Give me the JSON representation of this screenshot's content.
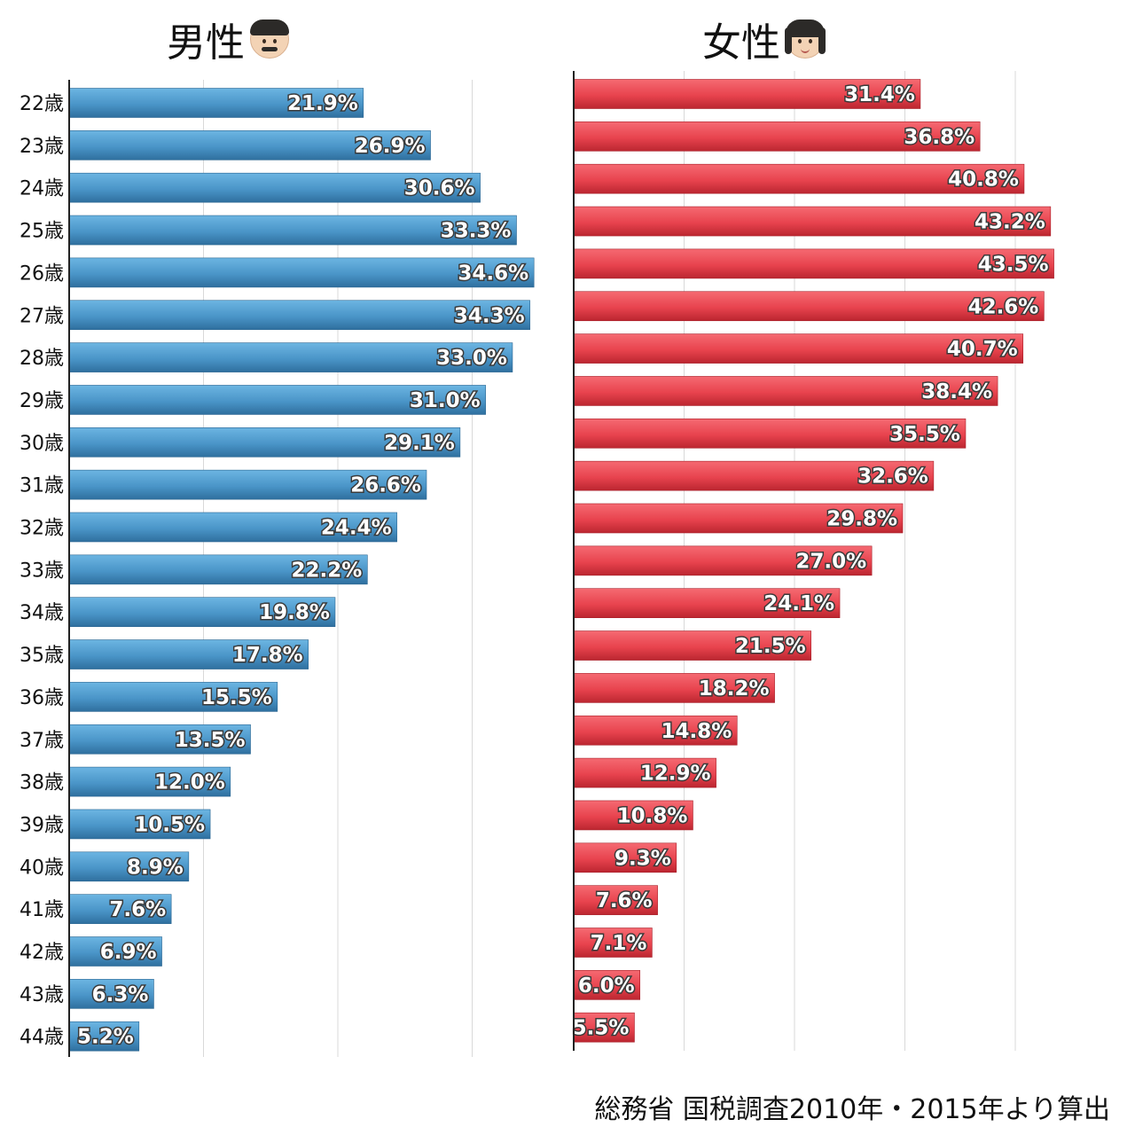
{
  "colors": {
    "male": "#4a95c8",
    "female": "#e8434e"
  },
  "male": {
    "title": "男性",
    "icon": "man-emoji-icon"
  },
  "female": {
    "title": "女性",
    "icon": "woman-emoji-icon"
  },
  "source": "総務省 国税調査2010年・2015年より算出",
  "chart_data": [
    {
      "type": "bar",
      "orientation": "horizontal",
      "title": "男性",
      "categories": [
        "22歳",
        "23歳",
        "24歳",
        "25歳",
        "26歳",
        "27歳",
        "28歳",
        "29歳",
        "30歳",
        "31歳",
        "32歳",
        "33歳",
        "34歳",
        "35歳",
        "36歳",
        "37歳",
        "38歳",
        "39歳",
        "40歳",
        "41歳",
        "42歳",
        "43歳",
        "44歳"
      ],
      "values": [
        21.9,
        26.9,
        30.6,
        33.3,
        34.6,
        34.3,
        33.0,
        31.0,
        29.1,
        26.6,
        24.4,
        22.2,
        19.8,
        17.8,
        15.5,
        13.5,
        12.0,
        10.5,
        8.9,
        7.6,
        6.9,
        6.3,
        5.2
      ],
      "labels": [
        "21.9%",
        "26.9%",
        "30.6%",
        "33.3%",
        "34.6%",
        "34.3%",
        "33.0%",
        "31.0%",
        "29.1%",
        "26.6%",
        "24.4%",
        "22.2%",
        "19.8%",
        "17.8%",
        "15.5%",
        "13.5%",
        "12.0%",
        "10.5%",
        "8.9%",
        "7.6%",
        "6.9%",
        "6.3%",
        "5.2%"
      ],
      "xlim": [
        0,
        40
      ],
      "grid": true
    },
    {
      "type": "bar",
      "orientation": "horizontal",
      "title": "女性",
      "categories": [
        "22歳",
        "23歳",
        "24歳",
        "25歳",
        "26歳",
        "27歳",
        "28歳",
        "29歳",
        "30歳",
        "31歳",
        "32歳",
        "33歳",
        "34歳",
        "35歳",
        "36歳",
        "37歳",
        "38歳",
        "39歳",
        "40歳",
        "41歳",
        "42歳",
        "43歳",
        "44歳"
      ],
      "values": [
        31.4,
        36.8,
        40.8,
        43.2,
        43.5,
        42.6,
        40.7,
        38.4,
        35.5,
        32.6,
        29.8,
        27.0,
        24.1,
        21.5,
        18.2,
        14.8,
        12.9,
        10.8,
        9.3,
        7.6,
        7.1,
        6.0,
        5.5
      ],
      "labels": [
        "31.4%",
        "36.8%",
        "40.8%",
        "43.2%",
        "43.5%",
        "42.6%",
        "40.7%",
        "38.4%",
        "35.5%",
        "32.6%",
        "29.8%",
        "27.0%",
        "24.1%",
        "21.5%",
        "18.2%",
        "14.8%",
        "12.9%",
        "10.8%",
        "9.3%",
        "7.6%",
        "7.1%",
        "6.0%",
        "5.5%"
      ],
      "xlim": [
        0,
        50
      ],
      "grid": true
    }
  ]
}
